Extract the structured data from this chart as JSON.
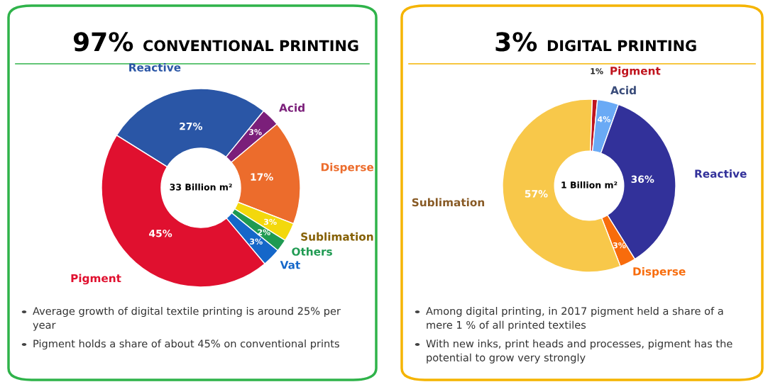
{
  "chart_data": [
    {
      "type": "donut",
      "title": "97% CONVENTIONAL PRINTING",
      "categories": [
        "Reactive",
        "Acid",
        "Disperse",
        "Sublimation",
        "Others",
        "Vat",
        "Pigment"
      ],
      "values": [
        27,
        3,
        17,
        3,
        2,
        3,
        45
      ],
      "value_labels": [
        "27%",
        "3%",
        "17%",
        "3%",
        "2%",
        "3%",
        "45%"
      ],
      "colors": [
        "#2a56a6",
        "#7b1f7a",
        "#ec6c2c",
        "#f3d80c",
        "#1f9a52",
        "#1567c9",
        "#e0102f"
      ],
      "annotations": [
        "33 Billion m²",
        "Average growth of digital textile printing is around 25% per year",
        "Pigment holds a share of about 45% on conventional prints"
      ]
    },
    {
      "type": "donut",
      "title": "3% DIGITAL PRINTING",
      "categories": [
        "Pigment",
        "Acid",
        "Reactive",
        "Disperse",
        "Sublimation"
      ],
      "values": [
        1,
        4,
        36,
        3,
        57
      ],
      "value_labels": [
        "1%",
        "4%",
        "36%",
        "3%",
        "57%"
      ],
      "colors": [
        "#c0141e",
        "#6aaaf5",
        "#32319a",
        "#f86c0c",
        "#f8c84a"
      ],
      "annotations": [
        "1 Billion m²",
        "Among digital printing, in 2017 pigment held a share of a mere 1 % of all printed textiles",
        "With new inks, print heads and processes, pigment has the potential to grow very strongly"
      ]
    }
  ]
}
